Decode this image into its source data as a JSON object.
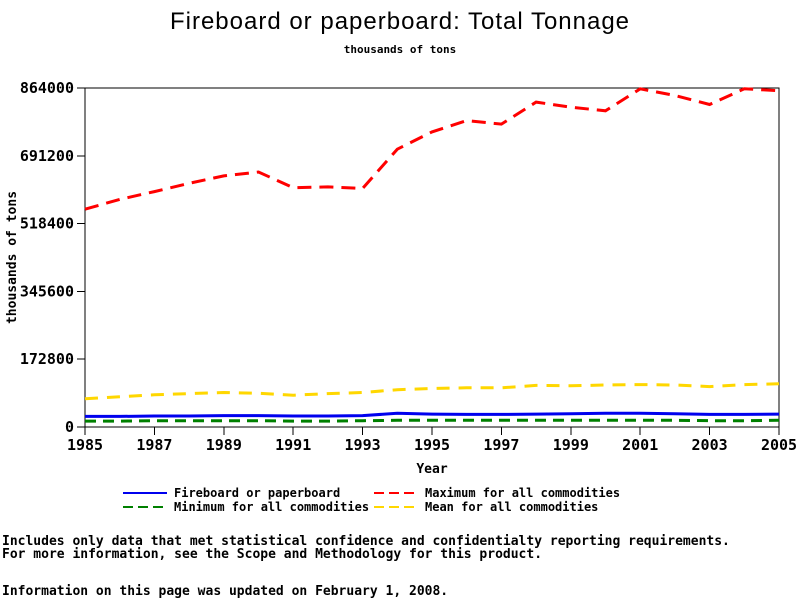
{
  "title": "Fireboard or paperboard: Total Tonnage",
  "subtitle": "thousands of tons",
  "chart_data": {
    "type": "line",
    "title": "Fireboard or paperboard: Total Tonnage",
    "subtitle": "thousands of tons",
    "xlabel": "Year",
    "ylabel": "thousands of tons",
    "xlim": [
      1985,
      2005
    ],
    "ylim": [
      0,
      864000
    ],
    "yticks": [
      0,
      172800,
      345600,
      518400,
      691200,
      864000
    ],
    "xticks": [
      1985,
      1987,
      1989,
      1991,
      1993,
      1995,
      1997,
      1999,
      2001,
      2003,
      2005
    ],
    "grid": false,
    "legend_position": "bottom",
    "x": [
      1985,
      1986,
      1987,
      1988,
      1989,
      1990,
      1991,
      1992,
      1993,
      1994,
      1995,
      1996,
      1997,
      1998,
      1999,
      2000,
      2001,
      2002,
      2003,
      2004,
      2005
    ],
    "series": [
      {
        "name": "Minimum for all commodities",
        "color": "#008000",
        "style": "dashed",
        "values": [
          15000,
          15000,
          16000,
          16000,
          16000,
          16000,
          15000,
          15000,
          16000,
          17000,
          17000,
          17000,
          17000,
          17000,
          17000,
          17000,
          17000,
          17000,
          16000,
          16000,
          17000
        ]
      },
      {
        "name": "Fireboard or paperboard",
        "color": "#0000ee",
        "style": "solid",
        "values": [
          27000,
          27000,
          28000,
          28000,
          29000,
          29000,
          28000,
          28000,
          29000,
          35000,
          33000,
          32000,
          32000,
          33000,
          34000,
          35000,
          35000,
          34000,
          32000,
          32000,
          33000
        ]
      },
      {
        "name": "Mean for all commodities",
        "color": "#ffd700",
        "style": "dashed",
        "values": [
          72000,
          77000,
          82000,
          85000,
          88000,
          86000,
          81000,
          85000,
          88000,
          95000,
          98000,
          100000,
          100000,
          106000,
          105000,
          107000,
          108000,
          107000,
          103000,
          108000,
          110000
        ]
      },
      {
        "name": "Maximum for all commodities",
        "color": "#ff0000",
        "style": "dashed",
        "values": [
          555000,
          580000,
          600000,
          621000,
          640000,
          650000,
          610000,
          612000,
          608000,
          708000,
          752000,
          781000,
          772000,
          828000,
          815000,
          806000,
          862000,
          845000,
          822000,
          862000,
          857000
        ]
      }
    ]
  },
  "legend": {
    "items": [
      {
        "label": "Fireboard or paperboard",
        "color": "#0000ee",
        "style": "solid"
      },
      {
        "label": "Maximum for all commodities",
        "color": "#ff0000",
        "style": "dashed"
      },
      {
        "label": "Minimum for all commodities",
        "color": "#008000",
        "style": "dashed"
      },
      {
        "label": "Mean for all commodities",
        "color": "#ffd700",
        "style": "dashed"
      }
    ]
  },
  "footnotes": {
    "line1": "Includes only data that met statistical confidence and confidentialty reporting requirements.",
    "line2": "For more information, see the Scope and Methodology for this product.",
    "updated": "Information on this page was updated on February 1, 2008."
  }
}
